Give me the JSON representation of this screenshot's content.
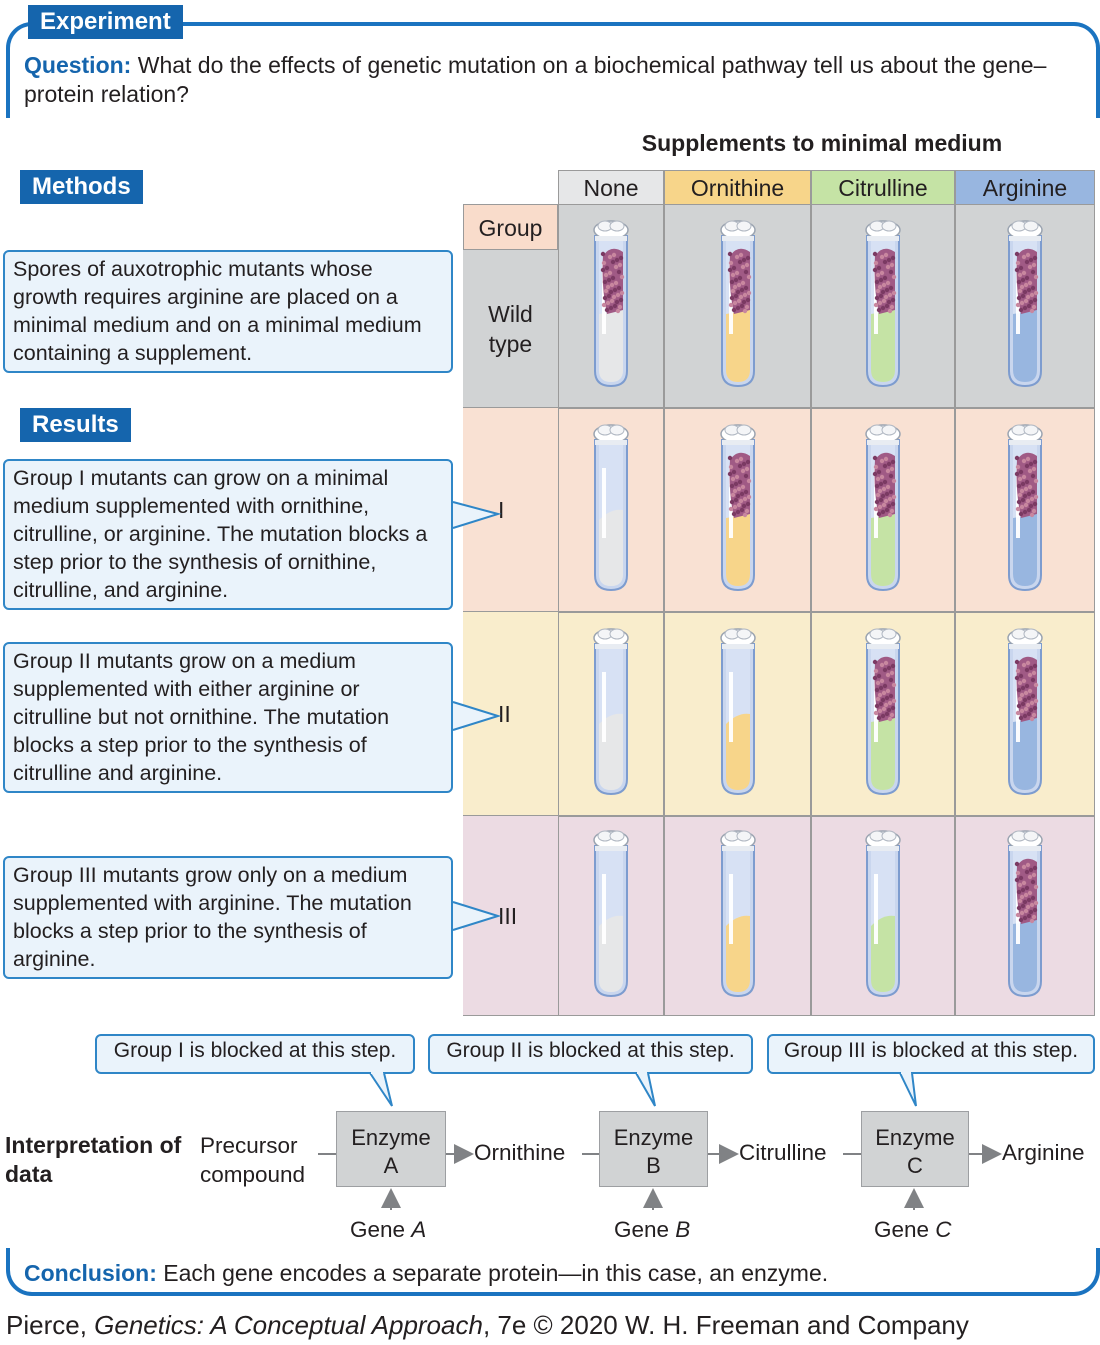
{
  "experiment_tag": "Experiment",
  "question_label": "Question:",
  "question_text": "What do the effects of genetic mutation on a biochemical pathway tell us about the gene–protein relation?",
  "supplements_title": "Supplements to minimal medium",
  "columns": [
    "None",
    "Ornithine",
    "Citrulline",
    "Arginine"
  ],
  "column_colors": [
    "#e6e7e8",
    "#f7d58a",
    "#c5e3a5",
    "#98b6e0"
  ],
  "group_header": "Group",
  "methods_tag": "Methods",
  "methods_text": "Spores of auxotrophic mutants whose growth requires arginine are placed on a minimal medium and on a minimal medium containing a supplement.",
  "results_tag": "Results",
  "rows": [
    {
      "label": "Wild type",
      "growth": [
        true,
        true,
        true,
        true
      ],
      "bg": "#d1d3d4"
    },
    {
      "label": "I",
      "growth": [
        false,
        true,
        true,
        true
      ],
      "bg": "#f9e1d3",
      "text": "Group I mutants can grow on a minimal medium supplemented with ornithine, citrulline, or arginine. The mutation blocks a step prior to the synthesis of ornithine, citrulline, and arginine."
    },
    {
      "label": "II",
      "growth": [
        false,
        false,
        true,
        true
      ],
      "bg": "#f9edcc",
      "text": "Group II mutants grow on a medium supplemented with either arginine or citrulline but not ornithine. The mutation blocks a step prior to the synthesis of citrulline and arginine."
    },
    {
      "label": "III",
      "growth": [
        false,
        false,
        false,
        true
      ],
      "bg": "#ecdbe3",
      "text": "Group III mutants grow only on a medium supplemented with arginine. The mutation blocks a step prior to the synthesis of arginine."
    }
  ],
  "interpretation_label": "Interpretation of data",
  "blocked": [
    "Group I is blocked at this step.",
    "Group II is blocked at this step.",
    "Group III is blocked at this step."
  ],
  "pathway": {
    "precursor": "Precursor compound",
    "enzymes": [
      "Enzyme A",
      "Enzyme B",
      "Enzyme C"
    ],
    "products": [
      "Ornithine",
      "Citrulline",
      "Arginine"
    ],
    "genes": [
      "Gene A",
      "Gene B",
      "Gene C"
    ]
  },
  "conclusion_label": "Conclusion:",
  "conclusion_text": "Each gene encodes a separate protein—in this case, an enzyme.",
  "credit_author": "Pierce,",
  "credit_title": "Genetics: A Conceptual Approach",
  "credit_rest": ", 7e © 2020 W. H. Freeman and Company"
}
